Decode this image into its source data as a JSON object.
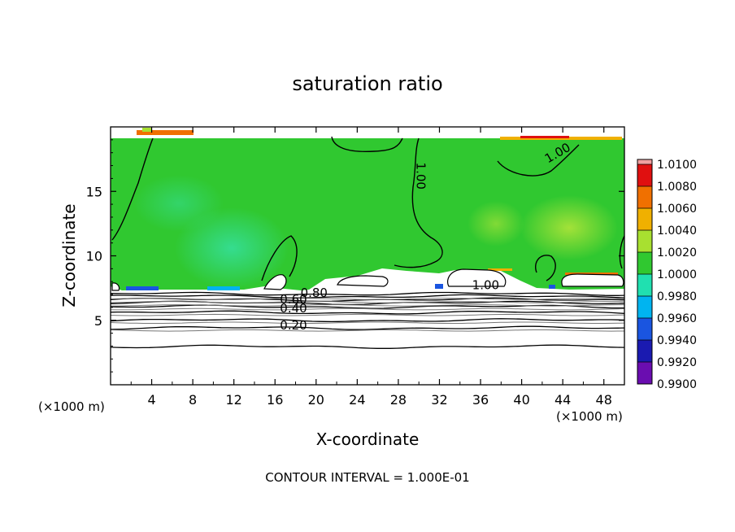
{
  "chart_data": {
    "type": "heatmap",
    "title": "saturation ratio",
    "xlabel": "X-coordinate",
    "ylabel": "Z-coordinate",
    "x_unit_left": "(×1000 m)",
    "x_unit_right": "(×1000 m)",
    "xlim": [
      0,
      50
    ],
    "ylim": [
      0,
      20
    ],
    "xticks": [
      4,
      8,
      12,
      16,
      20,
      24,
      28,
      32,
      36,
      40,
      44,
      48
    ],
    "yticks": [
      5,
      10,
      15
    ],
    "footer": "CONTOUR INTERVAL = 1.000E-01",
    "colorbar": {
      "levels": [
        0.99,
        0.992,
        0.994,
        0.996,
        0.998,
        1.0,
        1.002,
        1.004,
        1.006,
        1.008,
        1.01
      ],
      "labels": [
        "0.9900",
        "0.9920",
        "0.9940",
        "0.9960",
        "0.9980",
        "1.0000",
        "1.0020",
        "1.0040",
        "1.0060",
        "1.0080",
        "1.0100"
      ],
      "colors": [
        "#6a0db0",
        "#1a1ab0",
        "#1a55e0",
        "#00b4f0",
        "#20e0b0",
        "#30c830",
        "#a8e030",
        "#f0b000",
        "#f07000",
        "#e01010",
        "#f0a0a0"
      ]
    },
    "contour_labels": [
      {
        "text": "1.00",
        "x": 29.8,
        "z": 16.2
      },
      {
        "text": "1.00",
        "x": 43.7,
        "z": 17.7
      },
      {
        "text": "1.00",
        "x": 36.5,
        "z": 7.4
      },
      {
        "text": "0.80",
        "x": 19.8,
        "z": 6.8
      },
      {
        "text": "0.60",
        "x": 17.8,
        "z": 6.3
      },
      {
        "text": "0.40",
        "x": 17.8,
        "z": 5.6
      },
      {
        "text": "0.20",
        "x": 17.8,
        "z": 4.3
      }
    ],
    "isolines_z": [
      2.95,
      4.4,
      5.0,
      5.6,
      6.05,
      6.35,
      6.6,
      6.85,
      7.05
    ],
    "cloud_base_z": 7.2,
    "cloud_top_z": 19.0
  }
}
